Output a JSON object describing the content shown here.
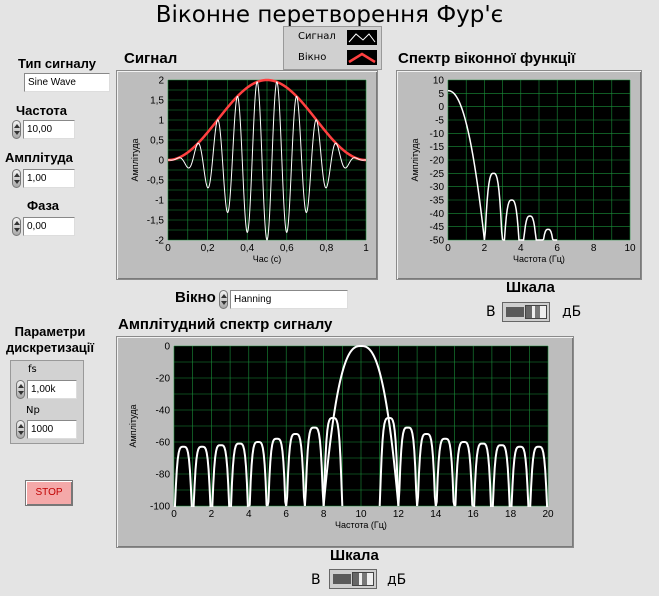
{
  "title": "Віконне перетворення Фур'є",
  "controls": {
    "signal_type": {
      "label": "Тип сигналу",
      "value": "Sine Wave"
    },
    "frequency": {
      "label": "Частота",
      "value": "10,00"
    },
    "amplitude": {
      "label": "Амплітуда",
      "value": "1,00"
    },
    "phase": {
      "label": "Фаза",
      "value": "0,00"
    },
    "window": {
      "label": "Вікно",
      "value": "Hanning"
    },
    "sampling": {
      "label": "Параметри дискретизації",
      "fs_label": "fs",
      "fs_value": "1,00k",
      "np_label": "Np",
      "np_value": "1000"
    },
    "stop_label": "STOP"
  },
  "legend": {
    "items": [
      {
        "name": "Сигнал",
        "color": "#ffffff"
      },
      {
        "name": "Вікно",
        "color": "#ff4040"
      }
    ]
  },
  "scale_top": {
    "label": "Шкала",
    "left": "В",
    "right": "дБ"
  },
  "scale_bottom": {
    "label": "Шкала",
    "left": "В",
    "right": "дБ"
  },
  "colors": {
    "plot_bg": "#000000",
    "grid": "#1a8f3a",
    "trace": "#ffffff",
    "window_trace": "#ff4040",
    "panel": "#bdbdbd"
  },
  "chart_data": [
    {
      "type": "line",
      "title": "Сигнал",
      "xlabel": "Час (с)",
      "ylabel": "Амплітуда",
      "xlim": [
        0,
        1
      ],
      "ylim": [
        -2,
        2
      ],
      "xticks": [
        "0",
        "0,2",
        "0,4",
        "0,6",
        "0,8",
        "1"
      ],
      "yticks": [
        "2",
        "1,5",
        "1",
        "0,5",
        "0",
        "-0,5",
        "-1",
        "-1,5",
        "-2"
      ],
      "series": [
        {
          "name": "Сигнал",
          "formula": "hanning-windowed sine, f=10 Hz, amplitude 2 peak"
        },
        {
          "name": "Вікно",
          "formula": "Hanning window 0..2"
        }
      ]
    },
    {
      "type": "line",
      "title": "Спектр віконної функції",
      "xlabel": "Частота (Гц)",
      "ylabel": "Амплітуда",
      "xlim": [
        0,
        10
      ],
      "ylim": [
        -50,
        10
      ],
      "xticks": [
        "0",
        "2",
        "4",
        "6",
        "8",
        "10"
      ],
      "yticks": [
        "10",
        "5",
        "0",
        "-5",
        "-10",
        "-15",
        "-20",
        "-25",
        "-30",
        "-35",
        "-40",
        "-45",
        "-50"
      ],
      "peak_db": 6,
      "sidelobes": [
        {
          "x": 2.5,
          "db": -25
        },
        {
          "x": 3.5,
          "db": -35
        },
        {
          "x": 4.5,
          "db": -41
        },
        {
          "x": 5.5,
          "db": -46
        }
      ]
    },
    {
      "type": "line",
      "title": "Амплітудний спектр сигналу",
      "xlabel": "Частота (Гц)",
      "ylabel": "Амплітуда",
      "xlim": [
        0,
        20
      ],
      "ylim": [
        -100,
        0
      ],
      "xticks": [
        "0",
        "2",
        "4",
        "6",
        "8",
        "10",
        "12",
        "14",
        "16",
        "18",
        "20"
      ],
      "yticks": [
        "0",
        "-20",
        "-40",
        "-60",
        "-80",
        "-100"
      ],
      "main_lobe": {
        "center": 10,
        "peak_db": 0,
        "half_width": 2
      },
      "sidelobes_db": [
        -63,
        -63,
        -62,
        -61,
        -60,
        -58,
        -55,
        -51,
        -45,
        -32,
        -32,
        -45,
        -51,
        -55,
        -58,
        -60,
        -61,
        -62,
        -63,
        -63,
        -65
      ]
    }
  ]
}
